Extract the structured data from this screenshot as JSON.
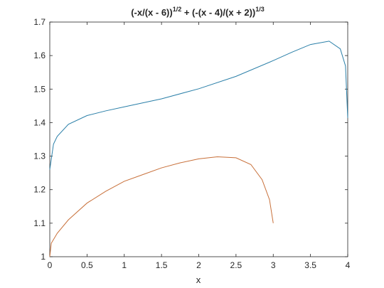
{
  "chart_data": {
    "type": "line",
    "title": [
      "(-x/(x - 6))",
      "1/2",
      " + (-(x - 4)/(x + 2))",
      "1/3"
    ],
    "x_label": "x",
    "series": [
      {
        "color": "#2a7fa8",
        "x": [
          0,
          0.05,
          0.1,
          0.25,
          0.5,
          0.75,
          1,
          1.5,
          2,
          2.5,
          3,
          3.25,
          3.5,
          3.75,
          3.9,
          3.97,
          4
        ],
        "values": [
          1.26,
          1.336,
          1.359,
          1.395,
          1.421,
          1.435,
          1.447,
          1.471,
          1.501,
          1.538,
          1.585,
          1.61,
          1.633,
          1.643,
          1.62,
          1.569,
          1.414
        ]
      },
      {
        "color": "#c8703a",
        "x": [
          0,
          0.02,
          0.1,
          0.25,
          0.5,
          0.75,
          1,
          1.25,
          1.5,
          1.75,
          2,
          2.25,
          2.5,
          2.7,
          2.85,
          2.95,
          3
        ],
        "values": [
          1.0,
          1.04,
          1.07,
          1.11,
          1.16,
          1.195,
          1.225,
          1.245,
          1.265,
          1.28,
          1.292,
          1.298,
          1.295,
          1.275,
          1.23,
          1.17,
          1.1
        ]
      }
    ],
    "xlim": [
      0,
      4
    ],
    "xticks": [
      0,
      0.5,
      1,
      1.5,
      2,
      2.5,
      3,
      3.5,
      4
    ],
    "ylim": [
      1,
      1.7
    ],
    "yticks": [
      1,
      1.1,
      1.2,
      1.3,
      1.4,
      1.5,
      1.6,
      1.7
    ]
  }
}
